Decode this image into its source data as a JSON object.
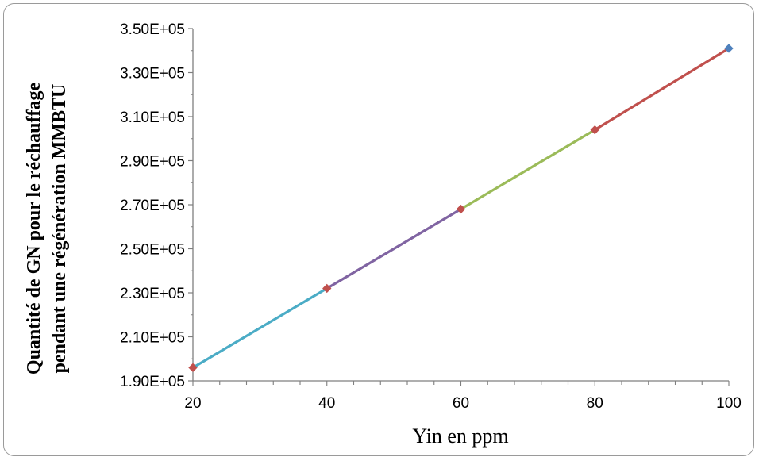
{
  "chart_data": {
    "type": "line",
    "xlabel": "Yin en ppm",
    "ylabel_line1": "Quantité de GN pour le réchauffage",
    "ylabel_line2": "pendant une régénération MMBTU",
    "x_ticks": [
      "20",
      "40",
      "60",
      "80",
      "100"
    ],
    "y_ticks": [
      "1.90E+05",
      "2.10E+05",
      "2.30E+05",
      "2.50E+05",
      "2.70E+05",
      "2.90E+05",
      "3.10E+05",
      "3.30E+05",
      "3.50E+05"
    ],
    "xlim": [
      20,
      100
    ],
    "ylim": [
      190000,
      350000
    ],
    "grid": false,
    "points": [
      {
        "x": 20,
        "y": 196000
      },
      {
        "x": 40,
        "y": 232000
      },
      {
        "x": 60,
        "y": 268000
      },
      {
        "x": 80,
        "y": 304000
      },
      {
        "x": 100,
        "y": 341000
      }
    ],
    "segment_colors": [
      "#4bacc6",
      "#8064a2",
      "#9bbb59",
      "#c0504d"
    ],
    "marker_color": "#c0504d",
    "last_marker_color": "#4f81bd"
  }
}
